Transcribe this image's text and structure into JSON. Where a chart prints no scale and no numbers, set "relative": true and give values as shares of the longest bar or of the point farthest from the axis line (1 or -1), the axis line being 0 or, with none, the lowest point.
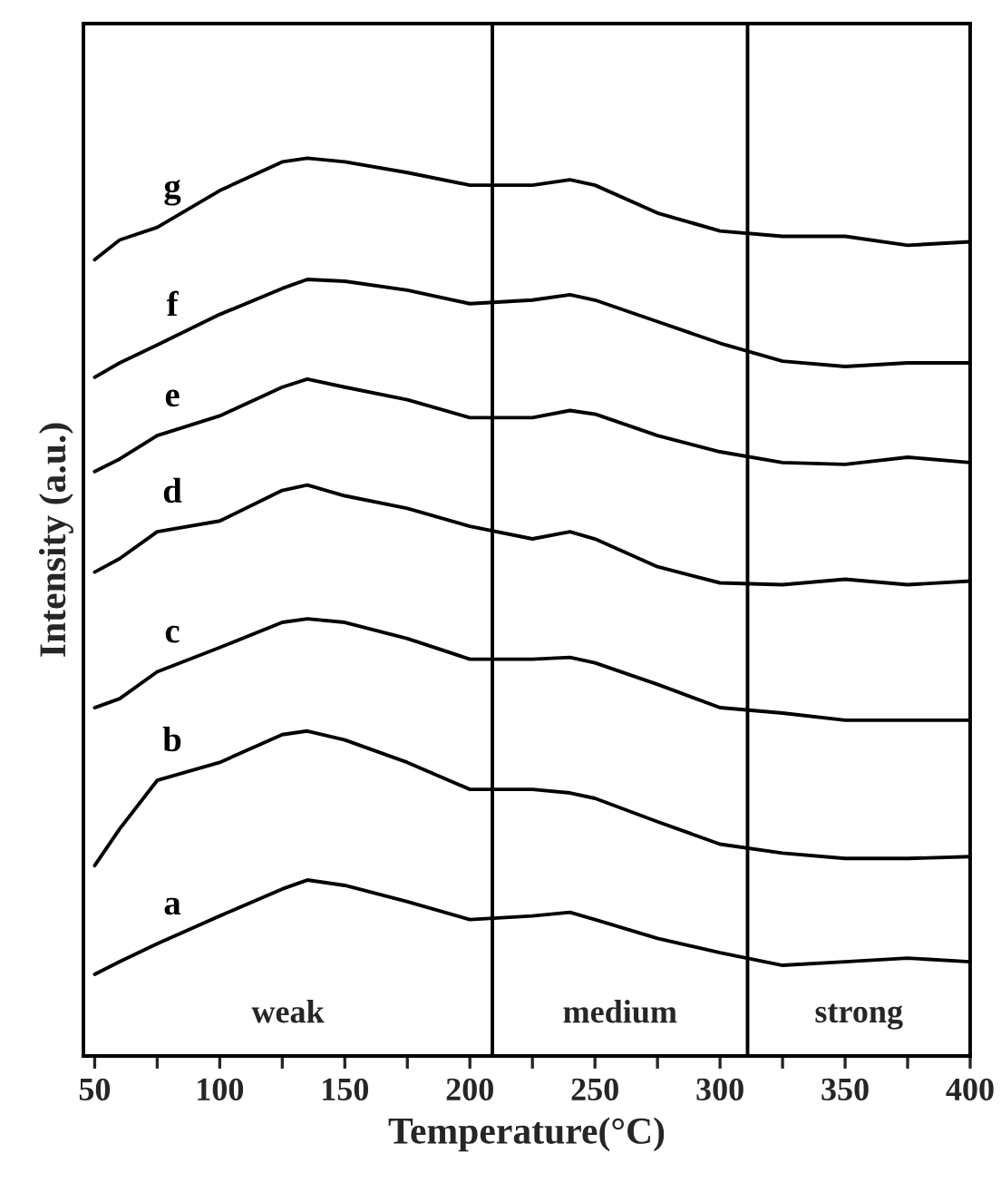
{
  "chart_data": {
    "type": "line",
    "relative": true,
    "xlabel": "Temperature(°C)",
    "ylabel": "Intensity (a.u.)",
    "tick_labels": "x",
    "grid": false,
    "legend": false,
    "marker": "none",
    "line_style": "solid",
    "xlim": [
      45.5,
      400
    ],
    "xticks": [
      50,
      {
        "value": 75,
        "label": null
      },
      100,
      {
        "value": 125,
        "label": null
      },
      150,
      {
        "value": 175,
        "label": null
      },
      200,
      {
        "value": 225,
        "label": null
      },
      250,
      {
        "value": 275,
        "label": null
      },
      300,
      {
        "value": 325,
        "label": null
      },
      350,
      {
        "value": 375,
        "label": null
      },
      400
    ],
    "x": [
      50,
      60,
      75,
      100,
      125,
      135,
      150,
      175,
      200,
      225,
      240,
      250,
      275,
      300,
      325,
      350,
      375,
      400
    ],
    "series": [
      {
        "name": "a",
        "color": "#000000",
        "values": [
          0.091,
          0.105,
          0.125,
          0.156,
          0.186,
          0.196,
          0.19,
          0.172,
          0.152,
          0.156,
          0.16,
          0.152,
          0.131,
          0.115,
          0.101,
          0.105,
          0.109,
          0.105
        ]
      },
      {
        "name": "b",
        "color": "#000000",
        "values": [
          0.212,
          0.253,
          0.307,
          0.327,
          0.358,
          0.362,
          0.352,
          0.327,
          0.297,
          0.297,
          0.293,
          0.287,
          0.261,
          0.236,
          0.226,
          0.22,
          0.22,
          0.222
        ]
      },
      {
        "name": "c",
        "color": "#000000",
        "values": [
          0.388,
          0.398,
          0.428,
          0.455,
          0.483,
          0.487,
          0.483,
          0.465,
          0.442,
          0.442,
          0.444,
          0.438,
          0.414,
          0.388,
          0.382,
          0.374,
          0.374,
          0.374
        ]
      },
      {
        "name": "d",
        "color": "#000000",
        "values": [
          0.539,
          0.554,
          0.584,
          0.596,
          0.63,
          0.636,
          0.624,
          0.61,
          0.59,
          0.576,
          0.584,
          0.576,
          0.545,
          0.527,
          0.525,
          0.531,
          0.525,
          0.529
        ]
      },
      {
        "name": "e",
        "color": "#000000",
        "values": [
          0.651,
          0.665,
          0.691,
          0.713,
          0.745,
          0.754,
          0.745,
          0.731,
          0.711,
          0.711,
          0.719,
          0.715,
          0.691,
          0.673,
          0.661,
          0.659,
          0.667,
          0.661
        ]
      },
      {
        "name": "f",
        "color": "#000000",
        "values": [
          0.756,
          0.772,
          0.792,
          0.826,
          0.855,
          0.865,
          0.863,
          0.853,
          0.838,
          0.842,
          0.848,
          0.842,
          0.818,
          0.794,
          0.774,
          0.768,
          0.772,
          0.772
        ]
      },
      {
        "name": "g",
        "color": "#000000",
        "values": [
          0.887,
          0.909,
          0.923,
          0.964,
          0.996,
          1.0,
          0.996,
          0.984,
          0.97,
          0.97,
          0.976,
          0.97,
          0.939,
          0.919,
          0.913,
          0.913,
          0.903,
          0.907
        ]
      }
    ],
    "ref_lines": [
      {
        "axis": "x",
        "value": 209,
        "color": "#000000",
        "line_style": "solid"
      },
      {
        "axis": "x",
        "value": 311,
        "color": "#000000",
        "line_style": "solid"
      }
    ],
    "annotations": [
      "weak",
      "medium",
      "strong"
    ]
  }
}
